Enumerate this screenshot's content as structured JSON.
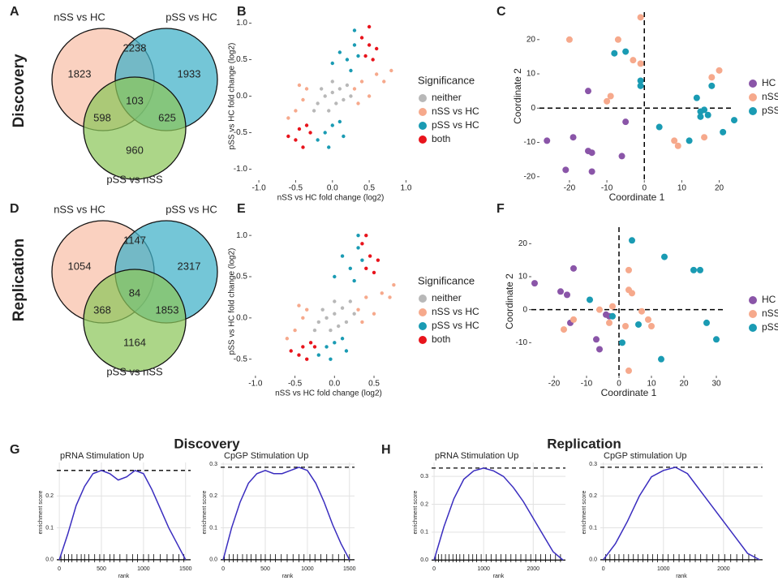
{
  "row_labels": [
    "Discovery",
    "Replication"
  ],
  "chart_data": [
    {
      "type": "venn",
      "panel": "A",
      "sets": [
        {
          "name": "nSS vs HC",
          "color": "#f8bfa8"
        },
        {
          "name": "pSS vs HC",
          "color": "#3eb0c8"
        },
        {
          "name": "pSS vs nSS",
          "color": "#8cc65a"
        }
      ],
      "values": [
        1823,
        2238,
        1933,
        598,
        103,
        625,
        960
      ]
    },
    {
      "type": "scatter",
      "panel": "B",
      "xlabel": "nSS vs HC fold change (log2)",
      "ylabel": "pSS vs HC fold change (log2)",
      "legend_title": "Significance",
      "xlim": [
        -1.1,
        1.05
      ],
      "ylim": [
        -1.15,
        1.15
      ],
      "xticks": [
        {
          "value": -1,
          "label": "-1.0"
        },
        -0.5,
        {
          "value": 0,
          "label": "0.0"
        },
        0.5,
        {
          "value": 1,
          "label": "1.0"
        }
      ],
      "yticks": [
        {
          "value": -1,
          "label": "-1.0"
        },
        -0.5,
        {
          "value": 0,
          "label": "0.0"
        },
        0.5,
        {
          "value": 1,
          "label": "1.0"
        }
      ],
      "series": [
        {
          "name": "neither",
          "color": "#b8b8b8",
          "x": [
            -0.2,
            -0.1,
            0,
            0.1,
            0.05,
            -0.15,
            0.2,
            0.15,
            -0.05,
            0,
            0.25,
            -0.25
          ],
          "y": [
            -0.1,
            0,
            0.05,
            0.1,
            -0.1,
            0.1,
            0.15,
            -0.05,
            -0.2,
            0.2,
            0,
            -0.2
          ]
        },
        {
          "name": "nSS vs HC",
          "color": "#f6a98c",
          "x": [
            -0.5,
            -0.4,
            -0.35,
            -0.6,
            0.3,
            0.4,
            0.5,
            0.6,
            0.7,
            0.35,
            -0.45,
            0.8
          ],
          "y": [
            -0.2,
            -0.05,
            0.1,
            -0.3,
            0.1,
            0.2,
            0,
            0.3,
            0.2,
            -0.1,
            0.15,
            0.35
          ]
        },
        {
          "name": "pSS vs HC",
          "color": "#1a9bb3",
          "x": [
            0.2,
            0.1,
            0.3,
            0,
            0.25,
            -0.1,
            0,
            -0.2,
            0.1,
            -0.05,
            0.35,
            0.15,
            0.3
          ],
          "y": [
            0.5,
            0.6,
            0.7,
            0.45,
            0.35,
            -0.5,
            -0.4,
            -0.6,
            -0.35,
            -0.7,
            0.55,
            -0.55,
            0.9
          ]
        },
        {
          "name": "both",
          "color": "#e8141c",
          "x": [
            0.45,
            0.5,
            0.4,
            0.55,
            0.6,
            0.5,
            -0.45,
            -0.5,
            -0.35,
            -0.6,
            -0.4,
            -0.3
          ],
          "y": [
            0.55,
            0.7,
            0.8,
            0.5,
            0.65,
            0.95,
            -0.45,
            -0.6,
            -0.4,
            -0.55,
            -0.7,
            -0.5
          ]
        }
      ]
    },
    {
      "type": "scatter",
      "panel": "C",
      "zero_lines": true,
      "xlabel": "Coordinate 1",
      "ylabel": "Coordinate 2",
      "xlim": [
        -28,
        24
      ],
      "ylim": [
        -21,
        28
      ],
      "xticks": [
        -20,
        -10,
        0,
        10,
        20
      ],
      "yticks": [
        -20,
        -10,
        0,
        10,
        20
      ],
      "series": [
        {
          "name": "HC",
          "color": "#8a55a8",
          "x": [
            -26,
            -21,
            -19,
            -15,
            -15,
            -14,
            -14,
            -6,
            -5
          ],
          "y": [
            -9.5,
            -18,
            -8.5,
            5,
            -12.5,
            -13,
            -18.5,
            -14,
            -4
          ]
        },
        {
          "name": "nSS",
          "color": "#f6a98c",
          "x": [
            -20,
            -10,
            -9,
            -7,
            -3,
            -1,
            -1,
            8,
            16,
            18,
            20,
            9
          ],
          "y": [
            20,
            2,
            3.5,
            20,
            14,
            26.5,
            13,
            -9.5,
            -8.5,
            9,
            11,
            -11
          ]
        },
        {
          "name": "pSS",
          "color": "#1a9bb3",
          "x": [
            -8,
            -5,
            -1,
            -1,
            4,
            12,
            14,
            15,
            15,
            17,
            18,
            21,
            24,
            16
          ],
          "y": [
            16,
            16.5,
            8,
            6.5,
            -5.5,
            -9.5,
            3,
            -1,
            -2.5,
            -2,
            6.5,
            -7,
            -3.5,
            -0.5
          ]
        }
      ]
    },
    {
      "type": "venn",
      "panel": "D",
      "sets": [
        {
          "name": "nSS vs HC",
          "color": "#f8bfa8"
        },
        {
          "name": "pSS vs HC",
          "color": "#3eb0c8"
        },
        {
          "name": "pSS vs nSS",
          "color": "#8cc65a"
        }
      ],
      "values": [
        1054,
        1147,
        2317,
        368,
        84,
        1853,
        1164
      ]
    },
    {
      "type": "scatter",
      "panel": "E",
      "xlabel": "nSS vs HC fold change (log2)",
      "ylabel": "pSS vs HC fold change (log2)",
      "legend_title": "Significance",
      "xlim": [
        -1.05,
        0.9
      ],
      "ylim": [
        -0.7,
        1.1
      ],
      "xticks": [
        {
          "value": -1,
          "label": "-1.0"
        },
        -0.5,
        {
          "value": 0,
          "label": "0.0"
        },
        0.5
      ],
      "yticks": [
        -0.5,
        {
          "value": 0,
          "label": "0.0"
        },
        0.5,
        {
          "value": 1,
          "label": "1.0"
        }
      ],
      "series": [
        {
          "name": "neither",
          "color": "#b8b8b8",
          "x": [
            -0.2,
            -0.1,
            0,
            0.1,
            0.05,
            -0.15,
            0.2,
            0.15,
            -0.05,
            0,
            0.25,
            -0.25
          ],
          "y": [
            -0.05,
            0,
            0.05,
            0.12,
            -0.1,
            0.1,
            0.2,
            -0.05,
            -0.15,
            0.2,
            0.05,
            -0.15
          ]
        },
        {
          "name": "nSS vs HC",
          "color": "#f6a98c",
          "x": [
            -0.5,
            -0.4,
            -0.35,
            -0.6,
            0.3,
            0.4,
            0.5,
            0.6,
            0.7,
            0.35,
            -0.45,
            0.75
          ],
          "y": [
            -0.15,
            0,
            0.1,
            -0.25,
            0.1,
            0.25,
            0.05,
            0.3,
            0.25,
            -0.05,
            0.15,
            0.4
          ]
        },
        {
          "name": "pSS vs HC",
          "color": "#1a9bb3",
          "x": [
            0.2,
            0.1,
            0.3,
            0,
            0.25,
            -0.1,
            0,
            -0.2,
            0.1,
            -0.05,
            0.35,
            0.15,
            0.3
          ],
          "y": [
            0.6,
            0.75,
            0.85,
            0.5,
            0.45,
            -0.35,
            -0.3,
            -0.45,
            -0.25,
            -0.5,
            0.7,
            -0.4,
            1.0
          ]
        },
        {
          "name": "both",
          "color": "#e8141c",
          "x": [
            0.4,
            0.45,
            0.35,
            0.5,
            0.55,
            0.4,
            -0.4,
            -0.45,
            -0.3,
            -0.55,
            -0.35,
            -0.25
          ],
          "y": [
            0.6,
            0.75,
            0.9,
            0.55,
            0.7,
            1.0,
            -0.35,
            -0.45,
            -0.3,
            -0.4,
            -0.5,
            -0.35
          ]
        }
      ]
    },
    {
      "type": "scatter",
      "panel": "F",
      "zero_lines": true,
      "xlabel": "Coordinate 1",
      "ylabel": "Coordinate 2",
      "xlim": [
        -27,
        33
      ],
      "ylim": [
        -20,
        25
      ],
      "xticks": [
        -20,
        -10,
        0,
        10,
        20,
        30
      ],
      "yticks": [
        -10,
        0,
        10,
        20
      ],
      "series": [
        {
          "name": "HC",
          "color": "#8a55a8",
          "x": [
            -26,
            -18,
            -16,
            -14,
            -15,
            -7,
            -6,
            -3,
            -4
          ],
          "y": [
            8,
            5.5,
            4.5,
            12.5,
            -4,
            -9,
            -12,
            -2,
            -1.5
          ]
        },
        {
          "name": "nSS",
          "color": "#f6a98c",
          "x": [
            -17,
            -14,
            -6,
            -3,
            -2,
            2,
            3,
            3,
            4,
            7,
            9,
            10,
            3
          ],
          "y": [
            -6,
            -3,
            0,
            -4,
            1,
            -5,
            12,
            -18.5,
            5,
            -0.5,
            -3,
            -5,
            6
          ]
        },
        {
          "name": "pSS",
          "color": "#1a9bb3",
          "x": [
            -9,
            -2,
            1,
            4,
            6,
            13,
            14,
            23,
            25,
            27,
            30
          ],
          "y": [
            3,
            -2,
            -10,
            21,
            -4.5,
            -15,
            16,
            12,
            12,
            -4,
            -9
          ]
        }
      ]
    },
    {
      "type": "line",
      "panel": "G",
      "group_title": "Discovery",
      "title": "pRNA Stimulation Up",
      "xlabel": "rank",
      "ylabel": "enrichment score",
      "color": "#3a2dbf",
      "grid": true,
      "xlim": [
        -30,
        1560
      ],
      "ylim": [
        -0.008,
        0.305
      ],
      "xticks": [
        0,
        500,
        1000,
        1500
      ],
      "yticks": [
        {
          "value": 0,
          "label": "0.0"
        },
        0.1,
        0.2
      ],
      "x": [
        0,
        100,
        200,
        300,
        400,
        500,
        600,
        700,
        800,
        900,
        1000,
        1100,
        1200,
        1300,
        1400,
        1500
      ],
      "values": [
        0,
        0.08,
        0.17,
        0.23,
        0.27,
        0.28,
        0.27,
        0.25,
        0.26,
        0.28,
        0.27,
        0.22,
        0.16,
        0.1,
        0.05,
        0
      ],
      "hits": [
        20,
        60,
        110,
        150,
        210,
        260,
        300,
        350,
        420,
        480,
        530,
        600,
        650,
        720,
        800,
        870,
        930,
        1000,
        1060,
        1120,
        1200,
        1280,
        1350,
        1420,
        1480
      ]
    },
    {
      "type": "line",
      "title": "CpGP Stimulation Up",
      "xlabel": "rank",
      "ylabel": "enrichment score",
      "color": "#3a2dbf",
      "grid": true,
      "xlim": [
        -30,
        1560
      ],
      "ylim": [
        -0.008,
        0.305
      ],
      "xticks": [
        0,
        500,
        1000,
        1500
      ],
      "yticks": [
        {
          "value": 0,
          "label": "0.0"
        },
        0.1,
        0.2,
        0.3
      ],
      "x": [
        0,
        100,
        200,
        300,
        400,
        500,
        600,
        700,
        800,
        900,
        1000,
        1100,
        1200,
        1300,
        1400,
        1500
      ],
      "values": [
        0,
        0.1,
        0.18,
        0.24,
        0.27,
        0.28,
        0.27,
        0.27,
        0.28,
        0.29,
        0.28,
        0.24,
        0.18,
        0.11,
        0.05,
        0
      ],
      "hits": [
        15,
        70,
        120,
        170,
        230,
        280,
        330,
        390,
        450,
        500,
        560,
        620,
        690,
        760,
        830,
        900,
        960,
        1030,
        1090,
        1160,
        1230,
        1300,
        1370,
        1440,
        1500
      ]
    },
    {
      "type": "line",
      "panel": "H",
      "group_title": "Replication",
      "title": "pRNA Stimulation Up",
      "xlabel": "rank",
      "ylabel": "enrichment score",
      "color": "#3a2dbf",
      "grid": true,
      "xlim": [
        -50,
        2650
      ],
      "ylim": [
        -0.008,
        0.35
      ],
      "xticks": [
        0,
        1000,
        2000
      ],
      "yticks": [
        {
          "value": 0,
          "label": "0.0"
        },
        0.1,
        0.2,
        0.3
      ],
      "x": [
        0,
        200,
        400,
        600,
        800,
        1000,
        1200,
        1400,
        1600,
        1800,
        2000,
        2200,
        2400,
        2600
      ],
      "values": [
        0,
        0.12,
        0.22,
        0.29,
        0.32,
        0.33,
        0.32,
        0.3,
        0.26,
        0.21,
        0.15,
        0.09,
        0.03,
        0
      ],
      "hits": [
        30,
        90,
        150,
        230,
        300,
        380,
        450,
        520,
        600,
        700,
        780,
        860,
        950,
        1050,
        1150,
        1250,
        1350,
        1450,
        1550,
        1650,
        1750,
        1850,
        1950,
        2050,
        2150,
        2250,
        2350,
        2450,
        2550
      ]
    },
    {
      "type": "line",
      "title": "CpGP stimulation Up",
      "xlabel": "rank",
      "ylabel": "enrichment score",
      "color": "#3a2dbf",
      "grid": true,
      "xlim": [
        -50,
        2650
      ],
      "ylim": [
        -0.008,
        0.305
      ],
      "xticks": [
        0,
        1000,
        2000
      ],
      "yticks": [
        {
          "value": 0,
          "label": "0.0"
        },
        0.1,
        0.2,
        0.3
      ],
      "x": [
        0,
        200,
        400,
        600,
        800,
        1000,
        1200,
        1400,
        1600,
        1800,
        2000,
        2200,
        2400,
        2600
      ],
      "values": [
        0,
        0.05,
        0.12,
        0.2,
        0.26,
        0.28,
        0.29,
        0.27,
        0.22,
        0.17,
        0.12,
        0.07,
        0.02,
        0
      ],
      "hits": [
        40,
        110,
        190,
        260,
        340,
        420,
        500,
        580,
        660,
        740,
        820,
        900,
        990,
        1080,
        1170,
        1260,
        1350,
        1440,
        1530,
        1620,
        1720,
        1820,
        1920,
        2020,
        2120,
        2220,
        2320,
        2420,
        2520
      ]
    }
  ]
}
